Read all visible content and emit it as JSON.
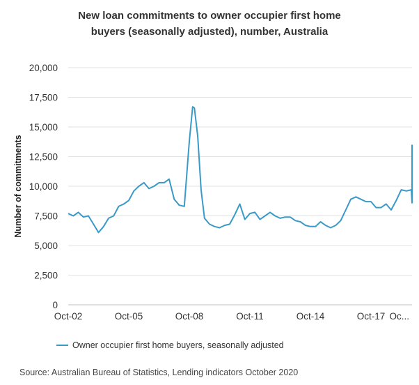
{
  "chart_data": {
    "type": "line",
    "title_line1": "New loan commitments to owner occupier first home",
    "title_line2": "buyers (seasonally adjusted), number, Australia",
    "ylabel": "Number of commitments",
    "ylim": [
      0,
      20000
    ],
    "grid": true,
    "legend_position": "bottom-left",
    "y_ticks": [
      "0",
      "2,500",
      "5,000",
      "7,500",
      "10,000",
      "12,500",
      "15,000",
      "17,500",
      "20,000"
    ],
    "x_ticks": [
      "Oct-02",
      "Oct-05",
      "Oct-08",
      "Oct-11",
      "Oct-14",
      "Oct-17",
      "Oc..."
    ],
    "x": [
      "2002-10",
      "2003-01",
      "2003-04",
      "2003-07",
      "2003-10",
      "2004-01",
      "2004-04",
      "2004-07",
      "2004-10",
      "2005-01",
      "2005-04",
      "2005-07",
      "2005-10",
      "2006-01",
      "2006-04",
      "2006-07",
      "2006-10",
      "2007-01",
      "2007-04",
      "2007-07",
      "2007-10",
      "2008-01",
      "2008-04",
      "2008-07",
      "2008-10",
      "2008-12",
      "2009-01",
      "2009-03",
      "2009-05",
      "2009-07",
      "2009-10",
      "2010-01",
      "2010-04",
      "2010-07",
      "2010-10",
      "2011-01",
      "2011-04",
      "2011-07",
      "2011-10",
      "2012-01",
      "2012-04",
      "2012-07",
      "2012-10",
      "2013-01",
      "2013-04",
      "2013-07",
      "2013-10",
      "2014-01",
      "2014-04",
      "2014-07",
      "2014-10",
      "2015-01",
      "2015-04",
      "2015-07",
      "2015-10",
      "2016-01",
      "2016-04",
      "2016-07",
      "2016-10",
      "2017-01",
      "2017-04",
      "2017-07",
      "2017-10",
      "2018-01",
      "2018-04",
      "2018-07",
      "2018-10",
      "2019-01",
      "2019-04",
      "2019-07",
      "2019-10",
      "2020-01",
      "2020-04",
      "2020-07",
      "2020-10"
    ],
    "series": [
      {
        "name": "Owner occupier first home buyers, seasonally adjusted",
        "color": "#3a9ac7",
        "values": [
          7700,
          7500,
          7800,
          7400,
          7500,
          6800,
          6100,
          6600,
          7300,
          7500,
          8300,
          8500,
          8800,
          9600,
          10000,
          10300,
          9800,
          10000,
          10300,
          10300,
          10600,
          8900,
          8400,
          8300,
          13800,
          16700,
          16600,
          14200,
          9700,
          7300,
          6800,
          6600,
          6500,
          6700,
          6800,
          7600,
          8500,
          7200,
          7700,
          7800,
          7200,
          7500,
          7800,
          7500,
          7300,
          7400,
          7400,
          7100,
          7000,
          6700,
          6600,
          6600,
          7000,
          6700,
          6500,
          6700,
          7100,
          8000,
          8900,
          9100,
          8900,
          8700,
          8700,
          8200,
          8200,
          8500,
          8000,
          8800,
          9700,
          9600,
          9700,
          8600,
          9400,
          12000,
          13500
        ]
      }
    ],
    "source": "Source: Australian Bureau of Statistics, Lending indicators October 2020"
  }
}
